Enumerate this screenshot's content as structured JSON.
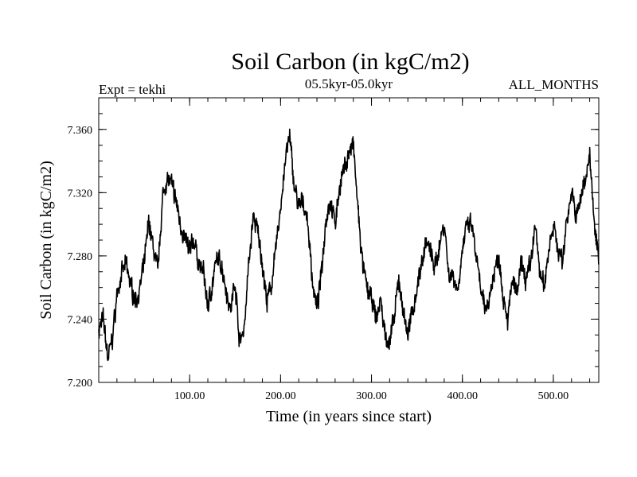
{
  "chart_data": {
    "type": "line",
    "title": "Soil Carbon (in kgC/m2)",
    "subtitle": "05.5kyr-05.0kyr",
    "left_label": "Expt = tekhi",
    "right_label": "ALL_MONTHS",
    "xlabel": "Time (in years since start)",
    "ylabel": "Soil Carbon (in kgC/m2)",
    "xlim": [
      0,
      550
    ],
    "ylim": [
      7.2,
      7.38
    ],
    "x_ticks": [
      {
        "value": 100,
        "label": "100.00"
      },
      {
        "value": 200,
        "label": "200.00"
      },
      {
        "value": 300,
        "label": "300.00"
      },
      {
        "value": 400,
        "label": "400.00"
      },
      {
        "value": 500,
        "label": "500.00"
      }
    ],
    "y_ticks": [
      {
        "value": 7.2,
        "label": "7.200"
      },
      {
        "value": 7.24,
        "label": "7.240"
      },
      {
        "value": 7.28,
        "label": "7.280"
      },
      {
        "value": 7.32,
        "label": "7.320"
      },
      {
        "value": 7.36,
        "label": "7.360"
      }
    ],
    "x_minor_step": 20,
    "y_minor_step": 0.01,
    "series": [
      {
        "name": "Soil Carbon",
        "color": "#000000",
        "noise_amplitude": 0.006,
        "noise_seed": 7,
        "x": [
          0,
          5,
          10,
          15,
          20,
          25,
          30,
          35,
          40,
          45,
          50,
          55,
          60,
          65,
          70,
          75,
          80,
          85,
          90,
          95,
          100,
          105,
          110,
          115,
          120,
          125,
          130,
          135,
          140,
          145,
          150,
          155,
          160,
          165,
          170,
          175,
          180,
          185,
          190,
          195,
          200,
          205,
          210,
          215,
          220,
          225,
          230,
          235,
          240,
          245,
          250,
          255,
          260,
          265,
          270,
          275,
          280,
          285,
          290,
          295,
          300,
          305,
          310,
          315,
          320,
          325,
          330,
          335,
          340,
          345,
          350,
          355,
          360,
          365,
          370,
          375,
          380,
          385,
          390,
          395,
          400,
          405,
          410,
          415,
          420,
          425,
          430,
          435,
          440,
          445,
          450,
          455,
          460,
          465,
          470,
          475,
          480,
          485,
          490,
          495,
          500,
          505,
          510,
          515,
          520,
          525,
          530,
          535,
          540,
          545,
          550
        ],
        "values": [
          7.233,
          7.24,
          7.215,
          7.228,
          7.255,
          7.268,
          7.275,
          7.262,
          7.252,
          7.258,
          7.275,
          7.302,
          7.285,
          7.27,
          7.315,
          7.33,
          7.325,
          7.315,
          7.3,
          7.29,
          7.283,
          7.29,
          7.275,
          7.27,
          7.248,
          7.262,
          7.278,
          7.275,
          7.26,
          7.245,
          7.265,
          7.225,
          7.235,
          7.275,
          7.305,
          7.295,
          7.275,
          7.25,
          7.262,
          7.285,
          7.31,
          7.34,
          7.355,
          7.325,
          7.31,
          7.315,
          7.3,
          7.265,
          7.245,
          7.27,
          7.305,
          7.315,
          7.3,
          7.325,
          7.335,
          7.345,
          7.35,
          7.31,
          7.275,
          7.26,
          7.252,
          7.24,
          7.252,
          7.23,
          7.225,
          7.24,
          7.265,
          7.245,
          7.23,
          7.245,
          7.26,
          7.275,
          7.29,
          7.282,
          7.272,
          7.288,
          7.302,
          7.268,
          7.268,
          7.258,
          7.285,
          7.298,
          7.3,
          7.28,
          7.258,
          7.245,
          7.255,
          7.27,
          7.28,
          7.255,
          7.24,
          7.265,
          7.255,
          7.275,
          7.265,
          7.275,
          7.3,
          7.27,
          7.26,
          7.285,
          7.3,
          7.285,
          7.275,
          7.305,
          7.32,
          7.305,
          7.315,
          7.33,
          7.345,
          7.298,
          7.28
        ]
      }
    ]
  }
}
